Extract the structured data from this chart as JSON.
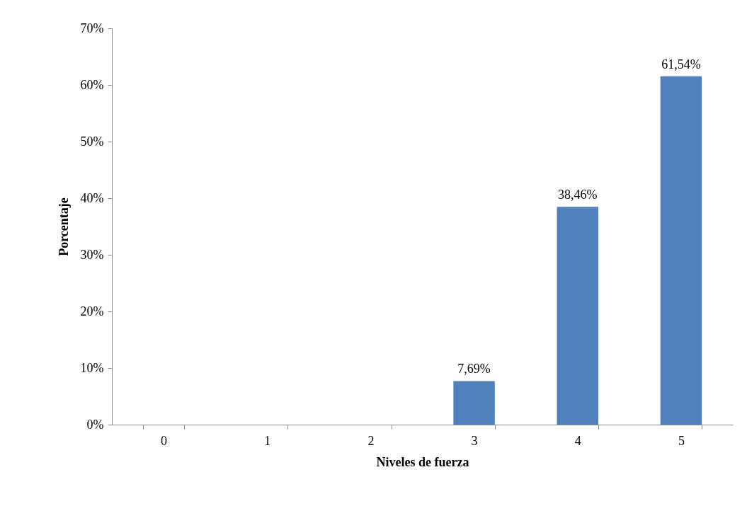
{
  "chart_data": {
    "type": "bar",
    "xlabel": "Niveles de fuerza",
    "ylabel": "Porcentaje",
    "categories": [
      "0",
      "1",
      "2",
      "3",
      "4",
      "5"
    ],
    "values": [
      0,
      0,
      0,
      7.69,
      38.46,
      61.54
    ],
    "value_labels": [
      null,
      null,
      null,
      "7,69%",
      "38,46%",
      "61,54%"
    ],
    "color": "#4f81bd",
    "ylim": [
      0,
      70
    ],
    "yticks": [
      {
        "value": 0,
        "label": "0%"
      },
      {
        "value": 10,
        "label": "10%"
      },
      {
        "value": 20,
        "label": "20%"
      },
      {
        "value": 30,
        "label": "30%"
      },
      {
        "value": 40,
        "label": "40%"
      },
      {
        "value": 50,
        "label": "50%"
      },
      {
        "value": 60,
        "label": "60%"
      },
      {
        "value": 70,
        "label": "70%"
      }
    ],
    "grid": false
  }
}
